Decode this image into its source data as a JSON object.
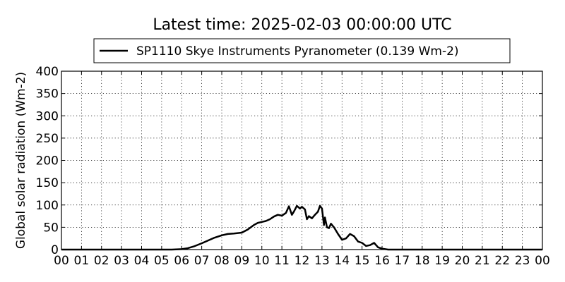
{
  "chart_data": {
    "type": "line",
    "title": "Latest time: 2025-02-03 00:00:00 UTC",
    "xlabel": "",
    "ylabel": "Global solar radiation (Wm-2)",
    "xlim": [
      0,
      24
    ],
    "ylim": [
      0,
      400
    ],
    "x_tick_labels": [
      "00",
      "01",
      "02",
      "03",
      "04",
      "05",
      "06",
      "07",
      "08",
      "09",
      "10",
      "11",
      "12",
      "13",
      "14",
      "15",
      "16",
      "17",
      "18",
      "19",
      "20",
      "21",
      "22",
      "23",
      "00"
    ],
    "y_ticks": [
      0,
      50,
      100,
      150,
      200,
      250,
      300,
      350,
      400
    ],
    "grid": true,
    "legend_position": "top-center",
    "colors": {
      "line": "#000000",
      "axes": "#000000",
      "background": "#ffffff"
    },
    "series": [
      {
        "name": "SP1110 Skye Instruments Pyranometer (0.139 Wm-2)",
        "x": [
          0,
          5.5,
          6.0,
          6.3,
          6.6,
          7.0,
          7.3,
          7.6,
          8.0,
          8.3,
          8.6,
          9.0,
          9.3,
          9.6,
          9.8,
          10.0,
          10.2,
          10.4,
          10.6,
          10.8,
          11.0,
          11.2,
          11.35,
          11.5,
          11.6,
          11.75,
          11.9,
          12.0,
          12.15,
          12.25,
          12.35,
          12.5,
          12.65,
          12.8,
          12.9,
          13.0,
          13.1,
          13.15,
          13.25,
          13.35,
          13.45,
          13.6,
          13.8,
          14.0,
          14.2,
          14.4,
          14.6,
          14.8,
          15.0,
          15.2,
          15.4,
          15.6,
          15.8,
          16.0,
          16.3,
          17.0,
          24.0
        ],
        "y": [
          0,
          0,
          1,
          3,
          7,
          14,
          20,
          26,
          32,
          35,
          36,
          38,
          45,
          55,
          60,
          62,
          64,
          68,
          74,
          78,
          76,
          82,
          97,
          78,
          85,
          98,
          92,
          96,
          90,
          68,
          75,
          70,
          78,
          85,
          98,
          92,
          55,
          72,
          50,
          48,
          58,
          50,
          35,
          22,
          25,
          35,
          30,
          18,
          15,
          8,
          10,
          15,
          5,
          2,
          0,
          0,
          0
        ]
      }
    ]
  }
}
